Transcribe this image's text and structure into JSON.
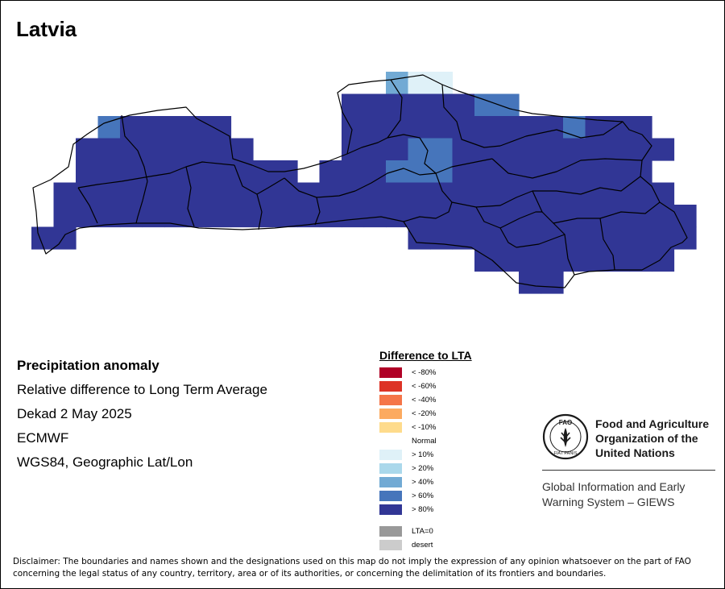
{
  "map": {
    "title": "Latvia",
    "info": {
      "heading": "Precipitation anomaly",
      "lines": [
        "Relative difference to Long Term Average",
        "Dekad 2 May 2025",
        "ECMWF",
        "WGS84, Geographic Lat/Lon"
      ]
    },
    "legend": {
      "title": "Difference to LTA",
      "items": [
        {
          "label": "< -80%",
          "color": "#b00026"
        },
        {
          "label": "< -60%",
          "color": "#dd3326"
        },
        {
          "label": "< -40%",
          "color": "#f57548"
        },
        {
          "label": "< -20%",
          "color": "#fcaa60"
        },
        {
          "label": "< -10%",
          "color": "#fedb8c"
        },
        {
          "label": "Normal",
          "color": "#ffffff"
        },
        {
          "label": "> 10%",
          "color": "#dff1f8"
        },
        {
          "label": "> 20%",
          "color": "#aad8eb"
        },
        {
          "label": "> 40%",
          "color": "#72aad4"
        },
        {
          "label": "> 60%",
          "color": "#4675bb"
        },
        {
          "label": "> 80%",
          "color": "#313695"
        }
      ],
      "extra_items": [
        {
          "label": "LTA=0",
          "color": "#999999"
        },
        {
          "label": "desert",
          "color": "#cccccc"
        }
      ]
    },
    "organization": {
      "logo_icon": "fao-logo-icon",
      "logo_letters": "FAO",
      "logo_motto": "FIAT PANIS",
      "name_lines": [
        "Food and Agriculture",
        "Organization of the",
        "United Nations"
      ],
      "system_lines": [
        "Global Information and Early",
        "Warning System – GIEWS"
      ]
    },
    "disclaimer": "Disclaimer: The boundaries and names shown and the designations used on this map do not imply the expression of any opinion whatsoever on the part of FAO concerning the legal status of any country, territory, area or of its authorities, or concerning the delimitation of its frontiers and boundaries.",
    "grid_cells": [
      {
        "row": 0,
        "col": 16,
        "class": "> 40%"
      },
      {
        "row": 0,
        "col": 17,
        "class": "> 10%"
      },
      {
        "row": 0,
        "col": 18,
        "class": "> 10%"
      },
      {
        "row": 1,
        "col": 14,
        "class": "> 80%"
      },
      {
        "row": 1,
        "col": 15,
        "class": "> 80%"
      },
      {
        "row": 1,
        "col": 16,
        "class": "> 80%"
      },
      {
        "row": 1,
        "col": 17,
        "class": "> 80%"
      },
      {
        "row": 1,
        "col": 18,
        "class": "> 80%"
      },
      {
        "row": 1,
        "col": 19,
        "class": "> 80%"
      },
      {
        "row": 1,
        "col": 20,
        "class": "> 60%"
      },
      {
        "row": 1,
        "col": 21,
        "class": "> 60%"
      },
      {
        "row": 2,
        "col": 3,
        "class": "> 60%"
      },
      {
        "row": 2,
        "col": 4,
        "class": "> 80%"
      },
      {
        "row": 2,
        "col": 5,
        "class": "> 80%"
      },
      {
        "row": 2,
        "col": 6,
        "class": "> 80%"
      },
      {
        "row": 2,
        "col": 7,
        "class": "> 80%"
      },
      {
        "row": 2,
        "col": 8,
        "class": "> 80%"
      },
      {
        "row": 2,
        "col": 14,
        "class": "> 80%"
      },
      {
        "row": 2,
        "col": 15,
        "class": "> 80%"
      },
      {
        "row": 2,
        "col": 16,
        "class": "> 80%"
      },
      {
        "row": 2,
        "col": 17,
        "class": "> 80%"
      },
      {
        "row": 2,
        "col": 18,
        "class": "> 80%"
      },
      {
        "row": 2,
        "col": 19,
        "class": "> 80%"
      },
      {
        "row": 2,
        "col": 20,
        "class": "> 80%"
      },
      {
        "row": 2,
        "col": 21,
        "class": "> 80%"
      },
      {
        "row": 2,
        "col": 22,
        "class": "> 80%"
      },
      {
        "row": 2,
        "col": 23,
        "class": "> 80%"
      },
      {
        "row": 2,
        "col": 24,
        "class": "> 60%"
      },
      {
        "row": 2,
        "col": 25,
        "class": "> 80%"
      },
      {
        "row": 2,
        "col": 26,
        "class": "> 80%"
      },
      {
        "row": 2,
        "col": 27,
        "class": "> 80%"
      },
      {
        "row": 3,
        "col": 2,
        "class": "> 80%"
      },
      {
        "row": 3,
        "col": 3,
        "class": "> 80%"
      },
      {
        "row": 3,
        "col": 4,
        "class": "> 80%"
      },
      {
        "row": 3,
        "col": 5,
        "class": "> 80%"
      },
      {
        "row": 3,
        "col": 6,
        "class": "> 80%"
      },
      {
        "row": 3,
        "col": 7,
        "class": "> 80%"
      },
      {
        "row": 3,
        "col": 8,
        "class": "> 80%"
      },
      {
        "row": 3,
        "col": 9,
        "class": "> 80%"
      },
      {
        "row": 3,
        "col": 14,
        "class": "> 80%"
      },
      {
        "row": 3,
        "col": 15,
        "class": "> 80%"
      },
      {
        "row": 3,
        "col": 16,
        "class": "> 80%"
      },
      {
        "row": 3,
        "col": 17,
        "class": "> 60%"
      },
      {
        "row": 3,
        "col": 18,
        "class": "> 60%"
      },
      {
        "row": 3,
        "col": 19,
        "class": "> 80%"
      },
      {
        "row": 3,
        "col": 20,
        "class": "> 80%"
      },
      {
        "row": 3,
        "col": 21,
        "class": "> 80%"
      },
      {
        "row": 3,
        "col": 22,
        "class": "> 80%"
      },
      {
        "row": 3,
        "col": 23,
        "class": "> 80%"
      },
      {
        "row": 3,
        "col": 24,
        "class": "> 80%"
      },
      {
        "row": 3,
        "col": 25,
        "class": "> 80%"
      },
      {
        "row": 3,
        "col": 26,
        "class": "> 80%"
      },
      {
        "row": 3,
        "col": 27,
        "class": "> 80%"
      },
      {
        "row": 3,
        "col": 28,
        "class": "> 80%"
      },
      {
        "row": 4,
        "col": 2,
        "class": "> 80%"
      },
      {
        "row": 4,
        "col": 3,
        "class": "> 80%"
      },
      {
        "row": 4,
        "col": 4,
        "class": "> 80%"
      },
      {
        "row": 4,
        "col": 5,
        "class": "> 80%"
      },
      {
        "row": 4,
        "col": 6,
        "class": "> 80%"
      },
      {
        "row": 4,
        "col": 7,
        "class": "> 80%"
      },
      {
        "row": 4,
        "col": 8,
        "class": "> 80%"
      },
      {
        "row": 4,
        "col": 9,
        "class": "> 80%"
      },
      {
        "row": 4,
        "col": 10,
        "class": "> 80%"
      },
      {
        "row": 4,
        "col": 11,
        "class": "> 80%"
      },
      {
        "row": 4,
        "col": 13,
        "class": "> 80%"
      },
      {
        "row": 4,
        "col": 14,
        "class": "> 80%"
      },
      {
        "row": 4,
        "col": 15,
        "class": "> 80%"
      },
      {
        "row": 4,
        "col": 16,
        "class": "> 60%"
      },
      {
        "row": 4,
        "col": 17,
        "class": "> 60%"
      },
      {
        "row": 4,
        "col": 18,
        "class": "> 60%"
      },
      {
        "row": 4,
        "col": 19,
        "class": "> 80%"
      },
      {
        "row": 4,
        "col": 20,
        "class": "> 80%"
      },
      {
        "row": 4,
        "col": 21,
        "class": "> 80%"
      },
      {
        "row": 4,
        "col": 22,
        "class": "> 80%"
      },
      {
        "row": 4,
        "col": 23,
        "class": "> 80%"
      },
      {
        "row": 4,
        "col": 24,
        "class": "> 80%"
      },
      {
        "row": 4,
        "col": 25,
        "class": "> 80%"
      },
      {
        "row": 4,
        "col": 26,
        "class": "> 80%"
      },
      {
        "row": 4,
        "col": 27,
        "class": "> 80%"
      },
      {
        "row": 5,
        "col": 1,
        "class": "> 80%"
      },
      {
        "row": 5,
        "col": 2,
        "class": "> 80%"
      },
      {
        "row": 5,
        "col": 3,
        "class": "> 80%"
      },
      {
        "row": 5,
        "col": 4,
        "class": "> 80%"
      },
      {
        "row": 5,
        "col": 5,
        "class": "> 80%"
      },
      {
        "row": 5,
        "col": 6,
        "class": "> 80%"
      },
      {
        "row": 5,
        "col": 7,
        "class": "> 80%"
      },
      {
        "row": 5,
        "col": 8,
        "class": "> 80%"
      },
      {
        "row": 5,
        "col": 9,
        "class": "> 80%"
      },
      {
        "row": 5,
        "col": 10,
        "class": "> 80%"
      },
      {
        "row": 5,
        "col": 11,
        "class": "> 80%"
      },
      {
        "row": 5,
        "col": 12,
        "class": "> 80%"
      },
      {
        "row": 5,
        "col": 13,
        "class": "> 80%"
      },
      {
        "row": 5,
        "col": 14,
        "class": "> 80%"
      },
      {
        "row": 5,
        "col": 15,
        "class": "> 80%"
      },
      {
        "row": 5,
        "col": 16,
        "class": "> 80%"
      },
      {
        "row": 5,
        "col": 17,
        "class": "> 80%"
      },
      {
        "row": 5,
        "col": 18,
        "class": "> 80%"
      },
      {
        "row": 5,
        "col": 19,
        "class": "> 80%"
      },
      {
        "row": 5,
        "col": 20,
        "class": "> 80%"
      },
      {
        "row": 5,
        "col": 21,
        "class": "> 80%"
      },
      {
        "row": 5,
        "col": 22,
        "class": "> 80%"
      },
      {
        "row": 5,
        "col": 23,
        "class": "> 80%"
      },
      {
        "row": 5,
        "col": 24,
        "class": "> 80%"
      },
      {
        "row": 5,
        "col": 25,
        "class": "> 80%"
      },
      {
        "row": 5,
        "col": 26,
        "class": "> 80%"
      },
      {
        "row": 5,
        "col": 27,
        "class": "> 80%"
      },
      {
        "row": 5,
        "col": 28,
        "class": "> 80%"
      },
      {
        "row": 6,
        "col": 1,
        "class": "> 80%"
      },
      {
        "row": 6,
        "col": 2,
        "class": "> 80%"
      },
      {
        "row": 6,
        "col": 3,
        "class": "> 80%"
      },
      {
        "row": 6,
        "col": 4,
        "class": "> 80%"
      },
      {
        "row": 6,
        "col": 5,
        "class": "> 80%"
      },
      {
        "row": 6,
        "col": 6,
        "class": "> 80%"
      },
      {
        "row": 6,
        "col": 7,
        "class": "> 80%"
      },
      {
        "row": 6,
        "col": 8,
        "class": "> 80%"
      },
      {
        "row": 6,
        "col": 9,
        "class": "> 80%"
      },
      {
        "row": 6,
        "col": 10,
        "class": "> 80%"
      },
      {
        "row": 6,
        "col": 11,
        "class": "> 80%"
      },
      {
        "row": 6,
        "col": 12,
        "class": "> 80%"
      },
      {
        "row": 6,
        "col": 13,
        "class": "> 80%"
      },
      {
        "row": 6,
        "col": 14,
        "class": "> 80%"
      },
      {
        "row": 6,
        "col": 15,
        "class": "> 80%"
      },
      {
        "row": 6,
        "col": 16,
        "class": "> 80%"
      },
      {
        "row": 6,
        "col": 17,
        "class": "> 80%"
      },
      {
        "row": 6,
        "col": 18,
        "class": "> 80%"
      },
      {
        "row": 6,
        "col": 19,
        "class": "> 80%"
      },
      {
        "row": 6,
        "col": 20,
        "class": "> 80%"
      },
      {
        "row": 6,
        "col": 21,
        "class": "> 80%"
      },
      {
        "row": 6,
        "col": 22,
        "class": "> 80%"
      },
      {
        "row": 6,
        "col": 23,
        "class": "> 80%"
      },
      {
        "row": 6,
        "col": 24,
        "class": "> 80%"
      },
      {
        "row": 6,
        "col": 25,
        "class": "> 80%"
      },
      {
        "row": 6,
        "col": 26,
        "class": "> 80%"
      },
      {
        "row": 6,
        "col": 27,
        "class": "> 80%"
      },
      {
        "row": 6,
        "col": 28,
        "class": "> 80%"
      },
      {
        "row": 6,
        "col": 29,
        "class": "> 80%"
      },
      {
        "row": 7,
        "col": 0,
        "class": "> 80%"
      },
      {
        "row": 7,
        "col": 1,
        "class": "> 80%"
      },
      {
        "row": 7,
        "col": 17,
        "class": "> 80%"
      },
      {
        "row": 7,
        "col": 18,
        "class": "> 80%"
      },
      {
        "row": 7,
        "col": 19,
        "class": "> 80%"
      },
      {
        "row": 7,
        "col": 20,
        "class": "> 80%"
      },
      {
        "row": 7,
        "col": 21,
        "class": "> 80%"
      },
      {
        "row": 7,
        "col": 22,
        "class": "> 80%"
      },
      {
        "row": 7,
        "col": 23,
        "class": "> 80%"
      },
      {
        "row": 7,
        "col": 24,
        "class": "> 80%"
      },
      {
        "row": 7,
        "col": 25,
        "class": "> 80%"
      },
      {
        "row": 7,
        "col": 26,
        "class": "> 80%"
      },
      {
        "row": 7,
        "col": 27,
        "class": "> 80%"
      },
      {
        "row": 7,
        "col": 28,
        "class": "> 80%"
      },
      {
        "row": 7,
        "col": 29,
        "class": "> 80%"
      },
      {
        "row": 8,
        "col": 20,
        "class": "> 80%"
      },
      {
        "row": 8,
        "col": 21,
        "class": "> 80%"
      },
      {
        "row": 8,
        "col": 22,
        "class": "> 80%"
      },
      {
        "row": 8,
        "col": 23,
        "class": "> 80%"
      },
      {
        "row": 8,
        "col": 24,
        "class": "> 80%"
      },
      {
        "row": 8,
        "col": 25,
        "class": "> 80%"
      },
      {
        "row": 8,
        "col": 26,
        "class": "> 80%"
      },
      {
        "row": 8,
        "col": 27,
        "class": "> 80%"
      },
      {
        "row": 8,
        "col": 28,
        "class": "> 80%"
      },
      {
        "row": 9,
        "col": 22,
        "class": "> 80%"
      },
      {
        "row": 9,
        "col": 23,
        "class": "> 80%"
      }
    ]
  }
}
